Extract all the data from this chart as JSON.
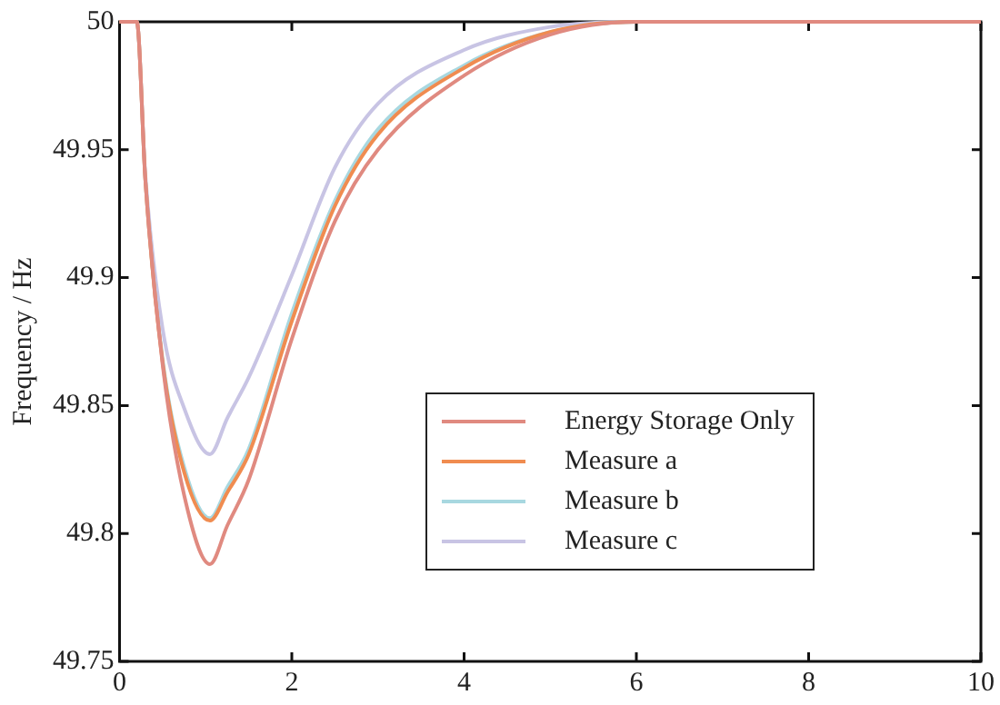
{
  "chart_data": {
    "type": "line",
    "ylabel": "Frequency / Hz",
    "xlim": [
      0,
      10
    ],
    "xticks": [
      0,
      2,
      4,
      6,
      8,
      10
    ],
    "ylim": [
      49.75,
      50
    ],
    "yticks": [
      49.75,
      49.8,
      49.85,
      49.9,
      49.95,
      50
    ],
    "grid": false,
    "legend": "center",
    "marker": "none",
    "line_style": "solid",
    "x": [
      0,
      0.2,
      0.3,
      0.5,
      0.75,
      1.05,
      1.25,
      1.5,
      2,
      2.5,
      3,
      4,
      5,
      6,
      10
    ],
    "series": [
      {
        "name": "Energy Storage Only",
        "color": "#e08a80",
        "values": [
          50,
          50,
          49.938,
          49.866,
          49.815,
          49.788,
          49.803,
          49.821,
          49.876,
          49.922,
          49.95,
          49.979,
          49.995,
          50,
          50
        ]
      },
      {
        "name": "Measure a",
        "color": "#f08c50",
        "values": [
          50,
          50,
          49.938,
          49.867,
          49.824,
          49.805,
          49.816,
          49.831,
          49.883,
          49.928,
          49.956,
          49.982,
          49.996,
          50,
          50
        ]
      },
      {
        "name": "Measure b",
        "color": "#a8d8e0",
        "values": [
          50,
          50,
          49.938,
          49.868,
          49.826,
          49.806,
          49.818,
          49.833,
          49.886,
          49.93,
          49.958,
          49.983,
          49.996,
          50,
          50
        ]
      },
      {
        "name": "Measure c",
        "color": "#c8c4e4",
        "values": [
          50,
          50,
          49.94,
          49.88,
          49.849,
          49.831,
          49.845,
          49.861,
          49.901,
          49.943,
          49.968,
          49.989,
          49.998,
          50,
          50
        ]
      }
    ]
  }
}
